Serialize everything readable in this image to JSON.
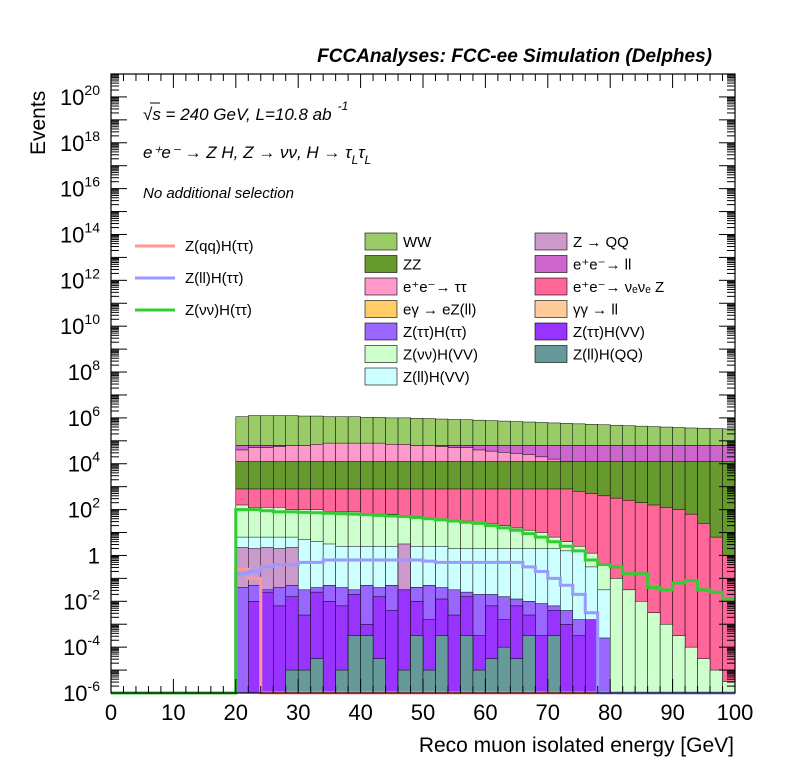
{
  "title": "FCCAnalyses: FCC-ee Simulation (Delphes)",
  "annotations": {
    "line1": "√s = 240 GeV, L=10.8 ab",
    "line1_sup": "-1",
    "line2": "e⁺e⁻ → Z H, Z → νν, H → τ",
    "line2_sub": "L",
    "line3": "No additional selection"
  },
  "colors": {
    "WW": "#99cc66",
    "ZZ": "#66992e",
    "ee_tautau": "#ff99cc",
    "egamma_eZll": "#ffcc66",
    "Ztautau_Htautau": "#9966ff",
    "Znunu_HVV": "#ccffcc",
    "Zll_HVV": "#ccffff",
    "Z_QQ": "#cc99cc",
    "ee_ll": "#cc66cc",
    "ee_nunuZ": "#ff6699",
    "gammagamma_ll": "#ffcc99",
    "Ztautau_HVV": "#9933ff",
    "Zll_HQQ": "#669999",
    "sig_qq": "#ff9999",
    "sig_ll": "#9999ff",
    "sig_nunu": "#33cc33"
  },
  "chart_data": {
    "type": "bar",
    "title": "FCCAnalyses: FCC-ee Simulation (Delphes)",
    "xlabel": "Reco muon isolated energy [GeV]",
    "ylabel": "Events",
    "xlim": [
      0,
      100
    ],
    "ylim": [
      1e-06,
      1e+21
    ],
    "log_y": true,
    "bin_width": 2,
    "x_ticks": [
      "0",
      "10",
      "20",
      "30",
      "40",
      "50",
      "60",
      "70",
      "80",
      "90",
      "100"
    ],
    "y_ticks": [
      {
        "base": "10",
        "exp": "-6"
      },
      {
        "base": "10",
        "exp": "-4"
      },
      {
        "base": "10",
        "exp": "-2"
      },
      {
        "base": "1",
        "exp": ""
      },
      {
        "base": "10",
        "exp": "2"
      },
      {
        "base": "10",
        "exp": "4"
      },
      {
        "base": "10",
        "exp": "6"
      },
      {
        "base": "10",
        "exp": "8"
      },
      {
        "base": "10",
        "exp": "10"
      },
      {
        "base": "10",
        "exp": "12"
      },
      {
        "base": "10",
        "exp": "14"
      },
      {
        "base": "10",
        "exp": "16"
      },
      {
        "base": "10",
        "exp": "18"
      },
      {
        "base": "10",
        "exp": "20"
      }
    ],
    "legend_position": "upper-center",
    "stack_start_bin": 10,
    "stack": [
      {
        "name": "Z(ll)H(QQ)",
        "key": "Zll_HQQ",
        "x_from": 28,
        "x_to": 72,
        "log10": [
          -5,
          -5,
          -4.5,
          -6,
          -5,
          -3.5,
          -3.5,
          -4.5,
          -6,
          -5,
          -3.5,
          -5,
          -3.5,
          -6,
          -3.5,
          -5,
          -4.5,
          -4,
          -4.5,
          -3.5,
          -6,
          -3.5
        ]
      },
      {
        "name": "Z(ττ)H(VV)",
        "key": "Ztautau_HVV",
        "x_from": 22,
        "x_to": 78,
        "log10": [
          -2,
          -1.6,
          -2.2,
          -1.8,
          -2.6,
          -1.6,
          -2,
          -2.2,
          -1.7,
          -3,
          -1.8,
          -2.4,
          -1.5,
          -2,
          -2.8,
          -1.9,
          -2.6,
          -1.8,
          -3.5,
          -2.2,
          -2.8,
          -2.2,
          -2.6,
          -3.5,
          -2.4,
          -3,
          -3.5,
          -2.8
        ]
      },
      {
        "name": "Z(ττ)H(ττ)",
        "key": "Ztautau_Htautau",
        "x_from": 20,
        "x_to": 80,
        "log10": [
          -1.4,
          -1.3,
          -1.5,
          -1.4,
          -1.3,
          -1.5,
          -1.4,
          -1.3,
          -1.4,
          -1.5,
          -1.3,
          -1.4,
          -1.3,
          -1.5,
          -1.4,
          -1.3,
          -1.4,
          -1.5,
          -1.6,
          -1.7,
          -1.7,
          -1.8,
          -1.9,
          -2,
          -2.1,
          -2.2,
          -2.4,
          -2.8,
          -3.2,
          -3.6
        ]
      },
      {
        "name": "Z → QQ",
        "key": "Z_QQ",
        "x_from": 20,
        "x_to": 50,
        "log10": [
          0.35,
          0.3,
          0.35,
          0.3,
          0.35,
          -1.6,
          -1.5,
          -1.6,
          -1.5,
          -1.6,
          -1.5,
          -1.6,
          -1.5,
          0.5,
          -1.4
        ]
      },
      {
        "name": "Z(ll)H(VV)",
        "key": "Zll_HVV",
        "x_from": 20,
        "x_to": 82,
        "log10": [
          0.8,
          0.8,
          0.8,
          0.8,
          0.8,
          0.7,
          0.6,
          0.5,
          0.4,
          0.4,
          0.4,
          0.4,
          0.4,
          0.4,
          0.4,
          0.4,
          0.4,
          0.3,
          0.3,
          0.3,
          0.3,
          0.3,
          0.3,
          0.3,
          0.3,
          0.3,
          0.2,
          0.2,
          -0.5,
          -1.5,
          -6
        ]
      },
      {
        "name": "Z(νν)H(VV)",
        "key": "Znunu_HVV",
        "x_from": 20,
        "x_to": 100,
        "log10": [
          2.2,
          2.1,
          2.1,
          2.1,
          2,
          2,
          2,
          1.9,
          1.9,
          1.9,
          1.8,
          1.8,
          1.8,
          1.7,
          1.7,
          1.6,
          1.6,
          1.5,
          1.5,
          1.4,
          1.4,
          1.3,
          1.2,
          1.1,
          1,
          0.8,
          0.6,
          0.4,
          0.1,
          -0.4,
          -1,
          -1.5,
          -2,
          -2.5,
          -3,
          -3.5,
          -4,
          -4.5,
          -5,
          -5.5
        ]
      },
      {
        "name": "e⁺e⁻ → ν_e ν_e Z",
        "key": "ee_nunuZ",
        "x_from": 20,
        "x_to": 100,
        "log10": [
          2.9,
          2.9,
          2.9,
          2.9,
          2.9,
          2.9,
          2.9,
          2.9,
          2.9,
          2.9,
          2.9,
          2.9,
          2.9,
          2.9,
          2.9,
          2.9,
          2.9,
          2.9,
          2.9,
          2.9,
          2.9,
          2.9,
          2.9,
          2.9,
          2.9,
          2.9,
          2.9,
          2.8,
          2.7,
          2.6,
          2.5,
          2.4,
          2.3,
          2.2,
          2.1,
          2,
          1.8,
          1.4,
          0.8,
          0
        ]
      },
      {
        "name": "ZZ",
        "key": "ZZ",
        "x_from": 20,
        "x_to": 100,
        "log10": [
          4.1,
          4.1,
          4.1,
          4.1,
          4.1,
          4.1,
          4.1,
          4.1,
          4.1,
          4.1,
          4.1,
          4.1,
          4.1,
          4.1,
          4.1,
          4.1,
          4.1,
          4.1,
          4.1,
          4.1,
          4.1,
          4.1,
          4.1,
          4.1,
          4.1,
          4.1,
          4.1,
          4.1,
          4.1,
          4.1,
          4.1,
          4.1,
          4.1,
          4.1,
          4.1,
          4.1,
          4.1,
          4.1,
          4.1,
          4.1
        ]
      },
      {
        "name": "e⁺e⁻ → ττ",
        "key": "ee_tautau",
        "x_from": 20,
        "x_to": 100,
        "log10": [
          4.6,
          4.7,
          4.7,
          4.75,
          4.8,
          4.8,
          4.85,
          4.9,
          4.9,
          4.9,
          4.9,
          4.9,
          4.85,
          4.85,
          4.8,
          4.8,
          4.75,
          4.7,
          4.7,
          4.6,
          4.55,
          4.5,
          4.45,
          4.4,
          4.3,
          4.2,
          4.1,
          4,
          3.9,
          3.8,
          3.7,
          3.6,
          3.5,
          3.4,
          3.3,
          3.2,
          3,
          2.8,
          2.6,
          2.4
        ]
      },
      {
        "name": "e⁺e⁻ → ll",
        "key": "ee_ll",
        "x_from": 20,
        "x_to": 100,
        "log10": [
          4.8,
          4.8,
          4.8,
          4.8,
          4.8,
          4.8,
          4.8,
          4.8,
          4.8,
          4.8,
          4.8,
          4.8,
          4.8,
          4.8,
          4.8,
          4.8,
          4.8,
          4.8,
          4.8,
          4.8,
          4.8,
          4.8,
          4.8,
          4.8,
          4.8,
          4.8,
          4.8,
          4.8,
          4.8,
          4.8,
          4.8,
          4.8,
          4.8,
          4.8,
          4.8,
          4.8,
          4.8,
          4.8,
          4.8,
          4.8
        ]
      },
      {
        "name": "eγ → eZ(ll)",
        "key": "egamma_eZll",
        "x_from": 20,
        "x_to": 100,
        "log10": [
          4.8,
          4.8,
          4.8,
          4.8,
          4.8,
          4.8,
          4.8,
          4.8,
          4.8,
          4.8,
          4.8,
          4.8,
          4.8,
          4.8,
          4.8,
          4.8,
          4.8,
          4.8,
          4.8,
          4.8,
          4.8,
          4.8,
          4.8,
          4.8,
          4.8,
          4.8,
          4.8,
          4.8,
          4.8,
          4.8,
          4.8,
          4.8,
          4.8,
          4.8,
          4.8,
          4.8,
          4.8,
          4.8,
          4.8,
          4.8
        ]
      },
      {
        "name": "γγ → ll",
        "key": "gammagamma_ll",
        "x_from": 20,
        "x_to": 100,
        "log10": [
          4.5,
          4.5,
          4.5,
          4.5,
          4.5,
          4.5,
          4.5,
          4.5,
          4.5,
          4.5,
          4.5,
          4.5,
          4.5,
          4.5,
          4.5,
          4.5,
          4.5,
          4.5,
          4.5,
          4.5,
          4.5,
          4.5,
          4.5,
          4.5,
          4.5,
          4.5,
          4.5,
          4.5,
          4.5,
          4.5,
          4.5,
          4.5,
          4.5,
          4.5,
          4.5,
          4.5,
          4.5,
          4.5,
          4.5,
          4.5
        ]
      },
      {
        "name": "WW",
        "key": "WW",
        "x_from": 20,
        "x_to": 100,
        "log10": [
          5.4,
          5.4,
          5.4,
          5.4,
          5.4,
          5.4,
          5.4,
          5.4,
          5.35,
          5.35,
          5.3,
          5.3,
          5.3,
          5.25,
          5.25,
          5.2,
          5.2,
          5.15,
          5.15,
          5.1,
          5.1,
          5.05,
          5.05,
          5,
          5,
          4.95,
          4.95,
          4.9,
          4.9,
          4.85,
          4.85,
          4.8,
          4.8,
          4.75,
          4.75,
          4.7,
          4.7,
          4.65,
          4.6,
          4.6
        ]
      }
    ],
    "stack_totals_log10": [
      6.05,
      6.1,
      6.1,
      6.1,
      6.1,
      6.08,
      6.08,
      6.05,
      6.05,
      6.05,
      6.02,
      6.02,
      6,
      6,
      5.98,
      5.97,
      5.95,
      5.93,
      5.92,
      5.9,
      5.88,
      5.86,
      5.84,
      5.82,
      5.8,
      5.78,
      5.76,
      5.74,
      5.72,
      5.7,
      5.68,
      5.66,
      5.64,
      5.62,
      5.6,
      5.58,
      5.56,
      5.55,
      5.53,
      5.52
    ],
    "signals": [
      {
        "name": "Z(qq)H(ττ)",
        "key": "sig_qq",
        "x_from": 0,
        "x_to": 100,
        "log10": [
          -6.3,
          -6.3,
          -6.3,
          -6.3,
          -6.3,
          -6.3,
          -6.3,
          -6.3,
          -6.3,
          -6.3,
          -0.6,
          -1.0,
          -6.3,
          -6.3,
          -6.3,
          -6.3,
          -6.3,
          -6.3,
          -6.3,
          -6.3,
          -6.3,
          -6.3,
          -6.3,
          -6.3,
          -6.3,
          -6.3,
          -6.3,
          -6.3,
          -6.3,
          -6.3,
          -6.3,
          -6.3,
          -6.3,
          -6.3,
          -6.3,
          -6.3,
          -6.3,
          -6.3,
          -6.3,
          -6.3,
          -6.3,
          -6.3,
          -6.3,
          -6.3,
          -6.3,
          -6.3,
          -6.3,
          -6.3,
          -6.3,
          -6.3
        ]
      },
      {
        "name": "Z(ll)H(ττ)",
        "key": "sig_ll",
        "x_from": 0,
        "x_to": 100,
        "log10": [
          -6.3,
          -6.3,
          -6.3,
          -6.3,
          -6.3,
          -6.3,
          -6.3,
          -6.3,
          -6.3,
          -6.3,
          -0.8,
          -0.7,
          -0.5,
          -0.4,
          -0.4,
          -0.3,
          -0.3,
          -0.2,
          -0.2,
          -0.2,
          -0.2,
          -0.2,
          -0.2,
          -0.2,
          -0.2,
          -0.25,
          -0.3,
          -0.3,
          -0.3,
          -0.3,
          -0.3,
          -0.3,
          -0.3,
          -0.5,
          -0.7,
          -1.0,
          -1.3,
          -1.7,
          -2.5,
          -6.3,
          -6.3,
          -6.3,
          -6.3,
          -6.3,
          -6.3,
          -6.3,
          -6.3,
          -6.3,
          -6.3,
          -6.3
        ]
      },
      {
        "name": "Z(νν)H(ττ)",
        "key": "sig_nunu",
        "x_from": 0,
        "x_to": 100,
        "log10": [
          -6.3,
          -6.3,
          -6.3,
          -6.3,
          -6.3,
          -6.3,
          -6.3,
          -6.3,
          -6.3,
          -6.3,
          2,
          2,
          1.95,
          1.9,
          1.9,
          1.88,
          1.86,
          1.84,
          1.82,
          1.8,
          1.78,
          1.75,
          1.72,
          1.7,
          1.65,
          1.6,
          1.55,
          1.5,
          1.45,
          1.4,
          1.3,
          1.2,
          1.1,
          0.95,
          0.8,
          0.6,
          0.4,
          0.2,
          -0.2,
          -0.4,
          -0.5,
          -0.8,
          -0.8,
          -1.4,
          -1.5,
          -1.2,
          -1.1,
          -1.5,
          -1.6,
          -1.9
        ]
      }
    ],
    "legend_col1": [
      "Z(qq)H(ττ)",
      "Z(ll)H(ττ)",
      "Z(νν)H(ττ)"
    ],
    "legend_col2": [
      "WW",
      "ZZ",
      "e⁺e⁻→ ττ",
      "eγ → eZ(ll)",
      "Z(ττ)H(ττ)",
      "Z(νν)H(VV)",
      "Z(ll)H(VV)"
    ],
    "legend_col3": [
      "Z → QQ",
      "e⁺e⁻→ ll",
      "e⁺e⁻→ νₑνₑ Z",
      "γγ → ll",
      "Z(ττ)H(VV)",
      "Z(ll)H(QQ)"
    ]
  }
}
